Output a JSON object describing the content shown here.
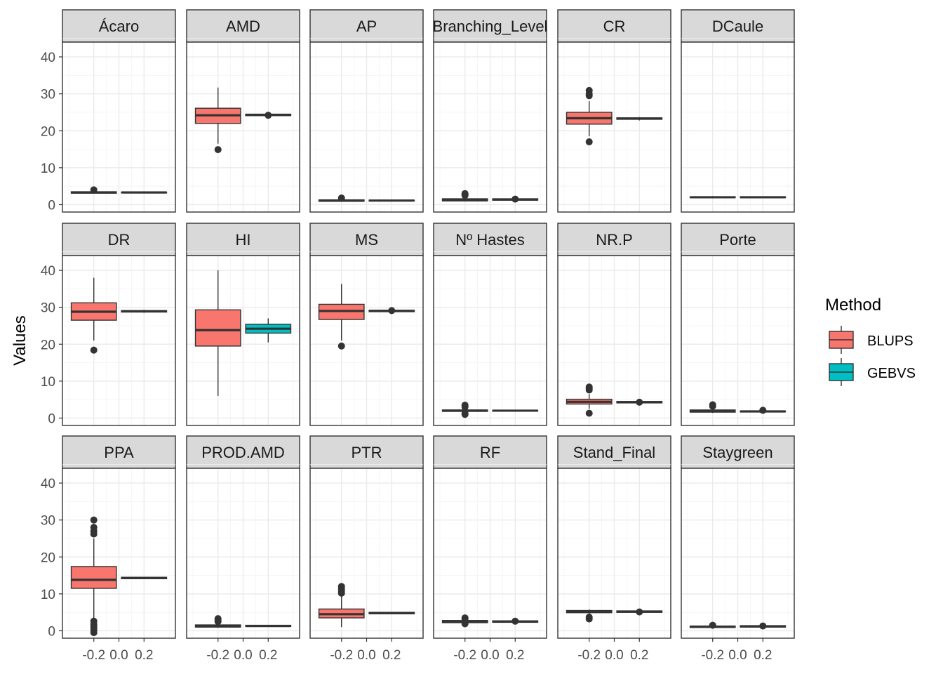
{
  "chart_data": {
    "type": "boxplot",
    "layout": "facet-wrap 3x6",
    "ylabel": "Values",
    "xlabel": "",
    "ylim": [
      -2,
      44
    ],
    "xlim": [
      -0.45,
      0.45
    ],
    "yticks": [
      0,
      10,
      20,
      30,
      40
    ],
    "xticks": [
      -0.2,
      0.0,
      0.2
    ],
    "xtick_labels": [
      "-0.2",
      "0.0",
      "0.2"
    ],
    "ytick_labels": [
      "0",
      "10",
      "20",
      "30",
      "40"
    ],
    "grid": true,
    "legend": {
      "title": "Method",
      "position": "right",
      "entries": [
        {
          "name": "BLUPS",
          "color": "#F8766D"
        },
        {
          "name": "GEBVS",
          "color": "#00BFC4"
        }
      ]
    },
    "boxes": {
      "BLUPS": {
        "center": -0.2,
        "halfwidth": 0.18
      },
      "GEBVS": {
        "center": 0.2,
        "halfwidth": 0.18
      }
    },
    "facets": [
      {
        "name": "Ácaro",
        "BLUPS": {
          "q1": 3.1,
          "median": 3.3,
          "q3": 3.5,
          "lw": 3.0,
          "uw": 3.7,
          "out": [
            4.0
          ]
        },
        "GEBVS": {
          "q1": 3.2,
          "median": 3.3,
          "q3": 3.4,
          "lw": 3.2,
          "uw": 3.4,
          "out": []
        }
      },
      {
        "name": "AMD",
        "BLUPS": {
          "q1": 22.0,
          "median": 24.2,
          "q3": 26.1,
          "lw": 16.5,
          "uw": 31.7,
          "out": [
            14.9
          ]
        },
        "GEBVS": {
          "q1": 24.1,
          "median": 24.3,
          "q3": 24.5,
          "lw": 24.0,
          "uw": 24.6,
          "out": [
            24.2
          ]
        }
      },
      {
        "name": "AP",
        "BLUPS": {
          "q1": 0.9,
          "median": 1.1,
          "q3": 1.3,
          "lw": 0.8,
          "uw": 1.4,
          "out": [
            1.8
          ]
        },
        "GEBVS": {
          "q1": 1.0,
          "median": 1.1,
          "q3": 1.2,
          "lw": 1.0,
          "uw": 1.2,
          "out": []
        }
      },
      {
        "name": "Branching_Level",
        "BLUPS": {
          "q1": 1.0,
          "median": 1.3,
          "q3": 1.6,
          "lw": 0.9,
          "uw": 1.8,
          "out": [
            2.5,
            2.8,
            3.0
          ]
        },
        "GEBVS": {
          "q1": 1.2,
          "median": 1.4,
          "q3": 1.6,
          "lw": 1.1,
          "uw": 1.7,
          "out": [
            1.5
          ]
        }
      },
      {
        "name": "CR",
        "BLUPS": {
          "q1": 21.8,
          "median": 23.4,
          "q3": 25.0,
          "lw": 18.5,
          "uw": 28.0,
          "out": [
            17.0,
            29.5,
            30.0,
            30.9
          ]
        },
        "GEBVS": {
          "q1": 23.1,
          "median": 23.3,
          "q3": 23.5,
          "lw": 22.8,
          "uw": 23.7,
          "out": []
        }
      },
      {
        "name": "DCaule",
        "BLUPS": {
          "q1": 1.9,
          "median": 2.0,
          "q3": 2.1,
          "lw": 1.8,
          "uw": 2.3,
          "out": []
        },
        "GEBVS": {
          "q1": 1.9,
          "median": 2.0,
          "q3": 2.1,
          "lw": 1.9,
          "uw": 2.1,
          "out": []
        }
      },
      {
        "name": "DR",
        "BLUPS": {
          "q1": 26.5,
          "median": 28.8,
          "q3": 31.2,
          "lw": 21.0,
          "uw": 38.0,
          "out": [
            18.4
          ]
        },
        "GEBVS": {
          "q1": 28.7,
          "median": 28.9,
          "q3": 29.1,
          "lw": 28.5,
          "uw": 29.3,
          "out": []
        }
      },
      {
        "name": "HI",
        "BLUPS": {
          "q1": 19.5,
          "median": 23.8,
          "q3": 29.3,
          "lw": 6.0,
          "uw": 40.0,
          "out": []
        },
        "GEBVS": {
          "q1": 23.0,
          "median": 24.2,
          "q3": 25.4,
          "lw": 20.5,
          "uw": 27.0,
          "out": []
        }
      },
      {
        "name": "MS",
        "BLUPS": {
          "q1": 26.7,
          "median": 29.0,
          "q3": 30.8,
          "lw": 21.0,
          "uw": 36.3,
          "out": [
            19.5
          ]
        },
        "GEBVS": {
          "q1": 28.8,
          "median": 29.0,
          "q3": 29.2,
          "lw": 28.6,
          "uw": 29.4,
          "out": [
            29.1
          ]
        }
      },
      {
        "name": "Nº Hastes",
        "BLUPS": {
          "q1": 1.8,
          "median": 2.0,
          "q3": 2.2,
          "lw": 1.6,
          "uw": 2.5,
          "out": [
            1.0,
            1.3,
            3.0,
            3.5
          ]
        },
        "GEBVS": {
          "q1": 1.9,
          "median": 2.0,
          "q3": 2.1,
          "lw": 1.9,
          "uw": 2.1,
          "out": []
        }
      },
      {
        "name": "NR.P",
        "BLUPS": {
          "q1": 3.8,
          "median": 4.4,
          "q3": 5.1,
          "lw": 2.5,
          "uw": 6.5,
          "out": [
            1.3,
            7.6,
            8.0,
            8.4
          ]
        },
        "GEBVS": {
          "q1": 4.1,
          "median": 4.3,
          "q3": 4.5,
          "lw": 4.0,
          "uw": 4.6,
          "out": [
            4.3
          ]
        }
      },
      {
        "name": "Porte",
        "BLUPS": {
          "q1": 1.6,
          "median": 1.9,
          "q3": 2.2,
          "lw": 1.4,
          "uw": 2.6,
          "out": [
            3.2,
            3.6
          ]
        },
        "GEBVS": {
          "q1": 1.7,
          "median": 1.8,
          "q3": 1.9,
          "lw": 1.6,
          "uw": 2.0,
          "out": [
            2.1
          ]
        }
      },
      {
        "name": "PPA",
        "BLUPS": {
          "q1": 11.5,
          "median": 13.8,
          "q3": 17.4,
          "lw": 3.5,
          "uw": 25.0,
          "out": [
            -0.5,
            0.0,
            0.6,
            1.2,
            1.8,
            2.6,
            26.2,
            27.0,
            28.0,
            30.0
          ]
        },
        "GEBVS": {
          "q1": 14.1,
          "median": 14.3,
          "q3": 14.5,
          "lw": 14.0,
          "uw": 14.6,
          "out": []
        }
      },
      {
        "name": "PROD.AMD",
        "BLUPS": {
          "q1": 1.0,
          "median": 1.3,
          "q3": 1.6,
          "lw": 0.8,
          "uw": 2.0,
          "out": [
            2.5,
            2.9,
            3.3
          ]
        },
        "GEBVS": {
          "q1": 1.2,
          "median": 1.3,
          "q3": 1.5,
          "lw": 1.1,
          "uw": 1.6,
          "out": []
        }
      },
      {
        "name": "PTR",
        "BLUPS": {
          "q1": 3.5,
          "median": 4.5,
          "q3": 5.9,
          "lw": 1.0,
          "uw": 9.5,
          "out": [
            10.2,
            10.8,
            11.4,
            12.0
          ]
        },
        "GEBVS": {
          "q1": 4.6,
          "median": 4.8,
          "q3": 5.0,
          "lw": 4.5,
          "uw": 5.1,
          "out": []
        }
      },
      {
        "name": "RF",
        "BLUPS": {
          "q1": 2.2,
          "median": 2.5,
          "q3": 2.8,
          "lw": 2.0,
          "uw": 3.0,
          "out": [
            1.9,
            3.3,
            3.5
          ]
        },
        "GEBVS": {
          "q1": 2.3,
          "median": 2.5,
          "q3": 2.7,
          "lw": 2.2,
          "uw": 2.8,
          "out": [
            2.6
          ]
        }
      },
      {
        "name": "Stand_Final",
        "BLUPS": {
          "q1": 4.9,
          "median": 5.2,
          "q3": 5.5,
          "lw": 4.3,
          "uw": 5.8,
          "out": [
            3.2,
            3.7
          ]
        },
        "GEBVS": {
          "q1": 5.0,
          "median": 5.2,
          "q3": 5.4,
          "lw": 4.9,
          "uw": 5.5,
          "out": [
            5.1
          ]
        }
      },
      {
        "name": "Staygreen",
        "BLUPS": {
          "q1": 0.9,
          "median": 1.1,
          "q3": 1.3,
          "lw": 0.8,
          "uw": 1.4,
          "out": [
            1.5
          ]
        },
        "GEBVS": {
          "q1": 1.0,
          "median": 1.2,
          "q3": 1.4,
          "lw": 1.0,
          "uw": 1.5,
          "out": [
            1.3
          ]
        }
      }
    ]
  }
}
